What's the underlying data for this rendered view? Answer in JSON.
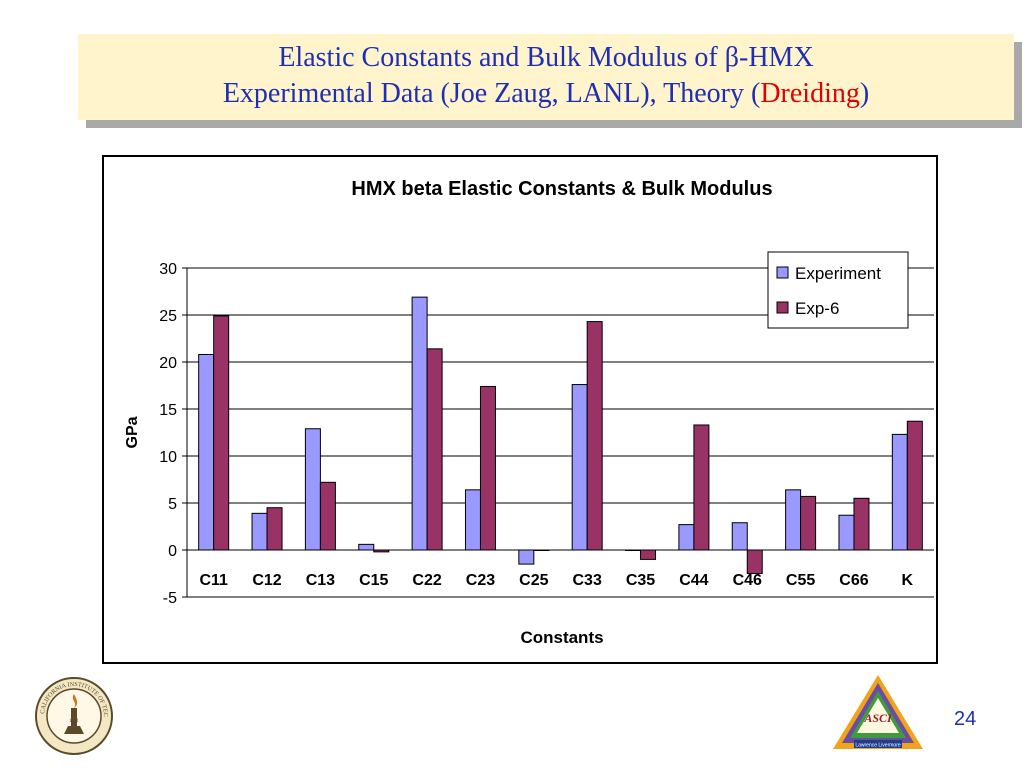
{
  "slide": {
    "title_line1": "Elastic Constants and Bulk Modulus of β-HMX",
    "title_line2_prefix": "Experimental Data (Joe Zaug, LANL), Theory (",
    "title_line2_accent": "Dreiding",
    "title_line2_suffix": ")",
    "page_number": "24",
    "accent_color": "#e00000",
    "title_color": "#1f2fb3"
  },
  "logos": {
    "left": {
      "name": "caltech-seal",
      "text": "CALIFORNIA INSTITUTE OF TECHNOLOGY",
      "year": "1891"
    },
    "right": {
      "name": "asci-triangle-logo",
      "text": "ASCI",
      "subtext": "Lawrence Livermore"
    }
  },
  "chart_data": {
    "type": "bar",
    "title": "HMX beta Elastic Constants & Bulk Modulus",
    "xlabel": "Constants",
    "ylabel": "GPa",
    "ylim": [
      -5,
      30
    ],
    "yticks": [
      -5,
      0,
      5,
      10,
      15,
      20,
      25,
      30
    ],
    "grid": true,
    "legend_position": "top-right",
    "categories": [
      "C11",
      "C12",
      "C13",
      "C15",
      "C22",
      "C23",
      "C25",
      "C33",
      "C35",
      "C44",
      "C46",
      "C55",
      "C66",
      "K"
    ],
    "series": [
      {
        "name": "Experiment",
        "color": "#9999ff",
        "values": [
          20.8,
          3.9,
          12.9,
          0.6,
          26.9,
          6.4,
          -1.5,
          17.6,
          0.0,
          2.7,
          2.9,
          6.4,
          3.7,
          12.3
        ]
      },
      {
        "name": "Exp-6",
        "color": "#993366",
        "values": [
          24.9,
          4.5,
          7.2,
          -0.2,
          21.4,
          17.4,
          0.0,
          24.3,
          -1.0,
          13.3,
          -2.5,
          5.7,
          5.5,
          13.7
        ]
      }
    ]
  }
}
